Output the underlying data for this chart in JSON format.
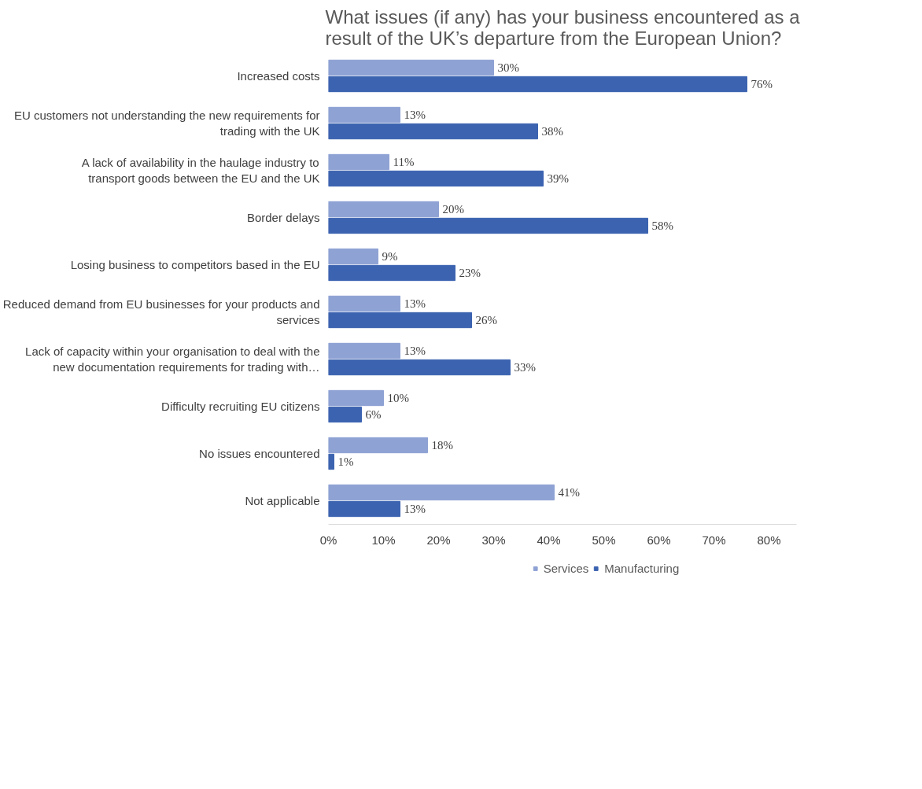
{
  "chart_data": {
    "type": "bar",
    "orientation": "horizontal",
    "title": "What issues (if any) has your business encountered as a result of the UK’s departure from the European Union?",
    "categories": [
      "Increased costs",
      "EU customers not understanding the new requirements for trading with the UK",
      "A lack of availability in the haulage industry to transport goods between the EU and the UK",
      "Border delays",
      "Losing business to competitors based in the EU",
      "Reduced demand from EU businesses for your products and services",
      "Lack of capacity within your organisation to deal with the new documentation requirements for trading with…",
      "Difficulty recruiting EU citizens",
      "No issues encountered",
      "Not applicable"
    ],
    "series": [
      {
        "name": "Services",
        "color": "#8fa2d4",
        "values": [
          30,
          13,
          11,
          20,
          9,
          13,
          13,
          10,
          18,
          41
        ],
        "value_labels": [
          "30%",
          "13%",
          "11%",
          "20%",
          "9%",
          "13%",
          "13%",
          "10%",
          "18%",
          "41%"
        ]
      },
      {
        "name": "Manufacturing",
        "color": "#3c63b0",
        "values": [
          76,
          38,
          39,
          58,
          23,
          26,
          33,
          6,
          1,
          13
        ],
        "value_labels": [
          "76%",
          "38%",
          "39%",
          "58%",
          "23%",
          "26%",
          "33%",
          "6%",
          "1%",
          "13%"
        ]
      }
    ],
    "xlim": [
      0,
      85
    ],
    "xticks": [
      {
        "value": 0,
        "label": "0%"
      },
      {
        "value": 10,
        "label": "10%"
      },
      {
        "value": 20,
        "label": "20%"
      },
      {
        "value": 30,
        "label": "30%"
      },
      {
        "value": 40,
        "label": "40%"
      },
      {
        "value": 50,
        "label": "50%"
      },
      {
        "value": 60,
        "label": "60%"
      },
      {
        "value": 70,
        "label": "70%"
      },
      {
        "value": 80,
        "label": "80%"
      }
    ],
    "grid": false,
    "legend": "bottom"
  }
}
